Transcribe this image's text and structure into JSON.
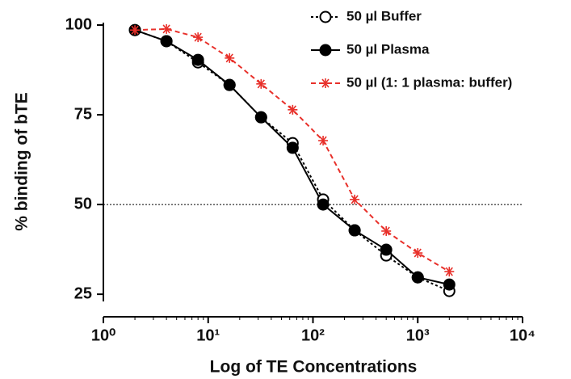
{
  "chart_data": {
    "type": "line",
    "x_label": "Log of TE Concentrations",
    "y_label": "% binding of bTE",
    "log_x": true,
    "xlim": [
      1,
      10000
    ],
    "xticks": [
      {
        "value": 1,
        "label": "10⁰"
      },
      {
        "value": 10,
        "label": "10¹"
      },
      {
        "value": 100,
        "label": "10²"
      },
      {
        "value": 1000,
        "label": "10³"
      },
      {
        "value": 10000,
        "label": "10⁴"
      }
    ],
    "ylim": [
      23,
      100
    ],
    "yticks": [
      25,
      50,
      75,
      100
    ],
    "reference_line": 50,
    "x": [
      2,
      4,
      8,
      16,
      32,
      64,
      125,
      250,
      500,
      1000,
      2000
    ],
    "series": [
      {
        "name": "50 µl Buffer",
        "color": "#000000",
        "marker": "open-circle",
        "dash": "3,3",
        "values": [
          98.6,
          95.5,
          89.6,
          83.3,
          74.3,
          67.1,
          51.4,
          42.8,
          35.8,
          29.7,
          25.9
        ]
      },
      {
        "name": "50 µl Plasma",
        "color": "#000000",
        "marker": "filled-circle",
        "dash": "none",
        "values": [
          98.6,
          95.5,
          90.3,
          83.3,
          74.3,
          65.8,
          50.0,
          42.8,
          37.4,
          29.7,
          27.7
        ]
      },
      {
        "name": "50 µl (1: 1 plasma: buffer)",
        "color": "#e8302a",
        "marker": "asterisk",
        "dash": "6,4",
        "values": [
          98.6,
          98.9,
          96.6,
          90.8,
          83.6,
          76.4,
          67.8,
          51.4,
          42.6,
          36.5,
          31.3
        ]
      }
    ]
  }
}
